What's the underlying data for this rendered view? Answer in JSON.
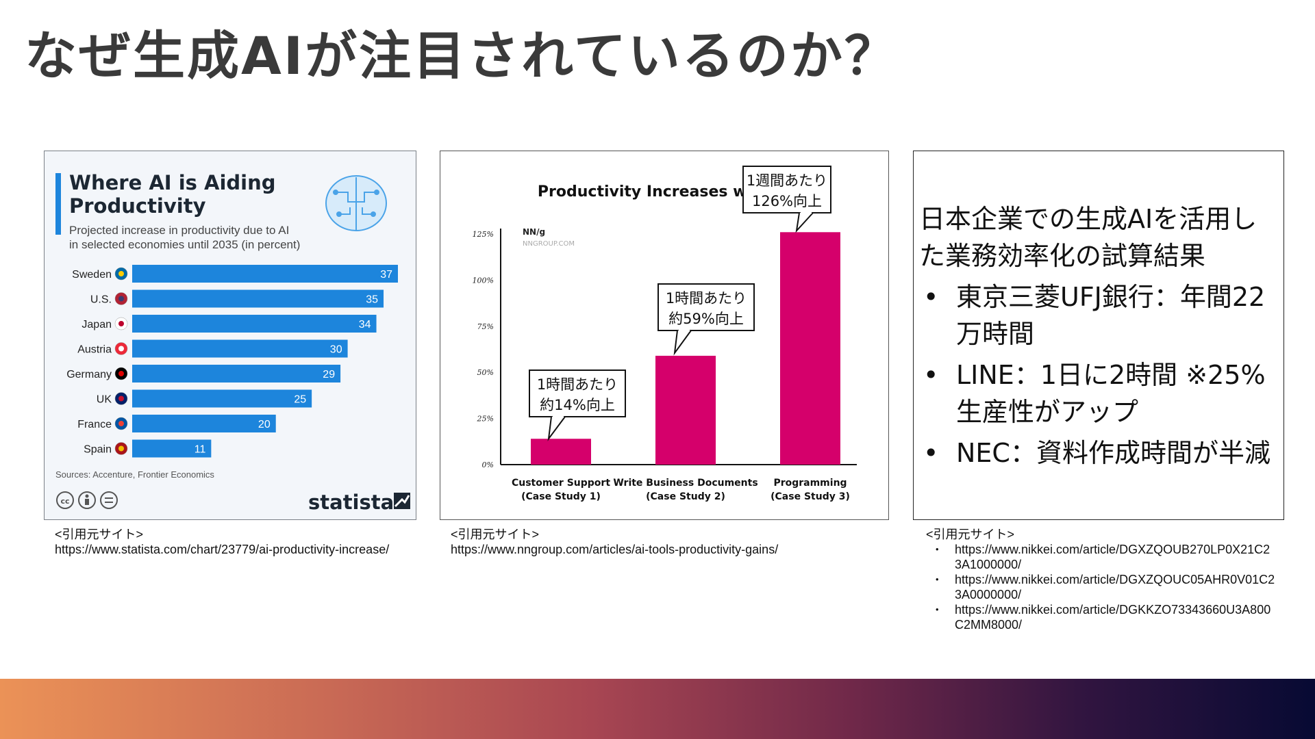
{
  "slide_title": "なぜ生成AIが注目されているのか？",
  "colors": {
    "band_start": "#eb9257",
    "band_end": "#070a33",
    "statista_bar": "#1d85dc",
    "nng_bar": "#d5006b"
  },
  "statista": {
    "title": "Where AI is Aiding Productivity",
    "title_line1": "Where AI is Aiding",
    "title_line2": "Productivity",
    "subtitle_line1": "Projected increase in productivity due to AI",
    "subtitle_line2": "in selected economies until 2035 (in percent)",
    "source": "Sources: Accenture, Frontier Economics",
    "brand": "statista",
    "icons": [
      "brain-circuit-icon",
      "creative-commons-icon",
      "attribution-icon",
      "no-derivatives-icon"
    ]
  },
  "nng": {
    "title": "Productivity Increases with AI",
    "logo": "NN/g",
    "logo_sub": "NNGROUP.COM",
    "callouts": [
      {
        "line1": "1時間あたり",
        "line2": "約14%向上"
      },
      {
        "line1": "1時間あたり",
        "line2": "約59%向上"
      },
      {
        "line1": "1週間あたり",
        "line2": "126%向上"
      }
    ]
  },
  "chart_data": [
    {
      "type": "bar",
      "orientation": "horizontal",
      "title": "Where AI is Aiding Productivity",
      "categories": [
        "Sweden",
        "U.S.",
        "Japan",
        "Austria",
        "Germany",
        "UK",
        "France",
        "Spain"
      ],
      "values": [
        37,
        35,
        34,
        30,
        29,
        25,
        20,
        11
      ],
      "xlim": [
        0,
        37
      ]
    },
    {
      "type": "bar",
      "title": "Productivity Increases with AI",
      "categories": [
        [
          "Customer Support",
          "(Case Study 1)"
        ],
        [
          "Write Business Documents",
          "(Case Study 2)"
        ],
        [
          "Programming",
          "(Case Study 3)"
        ]
      ],
      "values": [
        14,
        59,
        126
      ],
      "yticks": [
        "0%",
        "25%",
        "50%",
        "75%",
        "100%",
        "125%"
      ],
      "ylim": [
        0,
        125
      ]
    }
  ],
  "nikkei": {
    "heading": "日本企業での生成AIを活用した業務効率化の試算結果",
    "items": [
      "東京三菱UFJ銀行：年間22万時間",
      "LINE：1日に2時間 ※25%生産性がアップ",
      "NEC：資料作成時間が半減"
    ]
  },
  "citations": {
    "label": "<引用元サイト>",
    "statista_url": "https://www.statista.com/chart/23779/ai-productivity-increase/",
    "nng_url": "https://www.nngroup.com/articles/ai-tools-productivity-gains/",
    "nikkei_urls": [
      "https://www.nikkei.com/article/DGXZQOUB270LP0X21C23A1000000/",
      "https://www.nikkei.com/article/DGXZQOUC05AHR0V01C23A0000000/",
      "https://www.nikkei.com/article/DGKKZO73343660U3A800C2MM8000/"
    ]
  }
}
